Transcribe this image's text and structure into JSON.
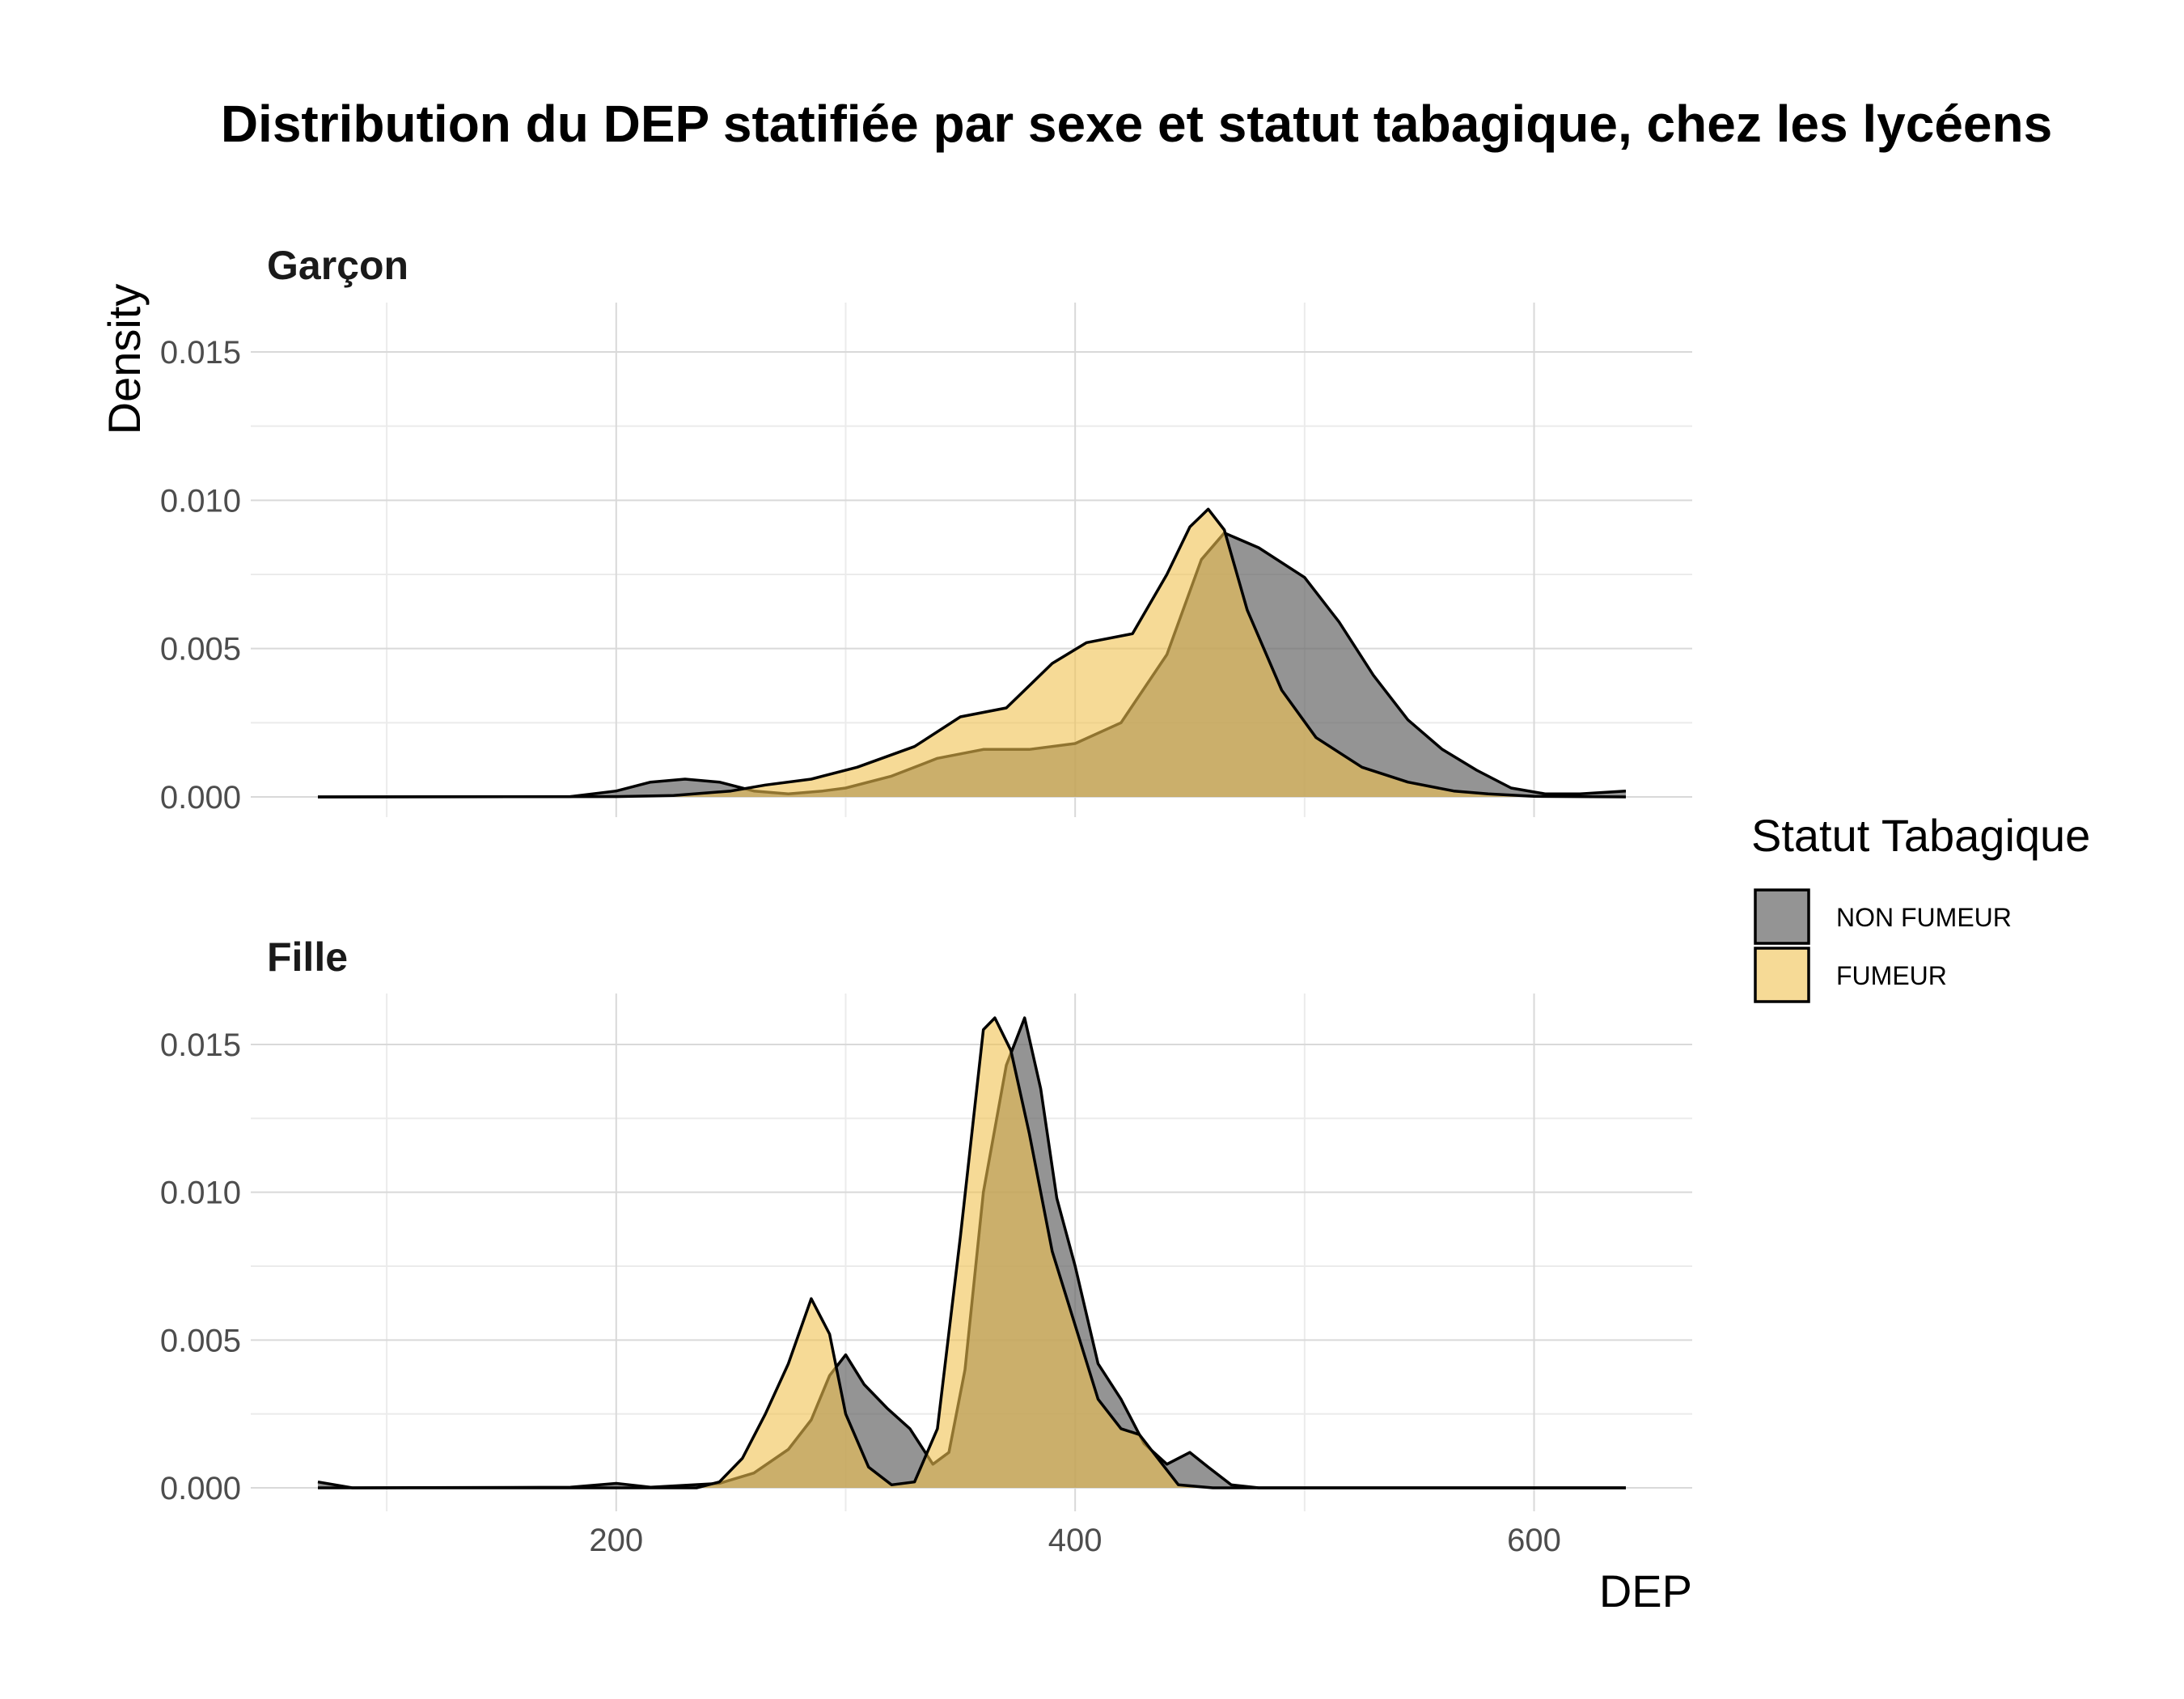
{
  "chart_data": {
    "type": "area",
    "title": "Distribution du DEP statifiée par sexe et statut tabagique, chez les lycéens",
    "xlabel": "DEP",
    "ylabel": "Density",
    "xlim": [
      70,
      640
    ],
    "ylim": [
      0,
      0.0165
    ],
    "x_ticks": [
      200,
      400,
      600
    ],
    "x_tick_labels": [
      "200",
      "400",
      "600"
    ],
    "y_ticks": [
      0,
      0.005,
      0.01,
      0.015
    ],
    "y_tick_labels": [
      "0.000",
      "0.005",
      "0.010",
      "0.015"
    ],
    "grid": true,
    "legend": {
      "title": "Statut Tabagique",
      "position": "right",
      "entries": [
        {
          "label": "NON FUMEUR",
          "color": "#666666",
          "opacity": 0.7
        },
        {
          "label": "FUMEUR",
          "color": "#F0C250",
          "opacity": 0.6
        }
      ]
    },
    "outline_color": "#000000",
    "panels": [
      {
        "label": "Garçon",
        "series": [
          {
            "name": "NON FUMEUR",
            "points": [
              [
                70,
                0
              ],
              [
                180,
                1e-05
              ],
              [
                200,
                0.0002
              ],
              [
                215,
                0.0005
              ],
              [
                230,
                0.0006
              ],
              [
                245,
                0.0005
              ],
              [
                260,
                0.0002
              ],
              [
                275,
                0.0001
              ],
              [
                290,
                0.0002
              ],
              [
                300,
                0.0003
              ],
              [
                320,
                0.0007
              ],
              [
                340,
                0.0013
              ],
              [
                360,
                0.0016
              ],
              [
                380,
                0.0016
              ],
              [
                400,
                0.0018
              ],
              [
                420,
                0.0025
              ],
              [
                440,
                0.0048
              ],
              [
                455,
                0.008
              ],
              [
                465,
                0.0089
              ],
              [
                480,
                0.0084
              ],
              [
                500,
                0.0074
              ],
              [
                515,
                0.0059
              ],
              [
                530,
                0.0041
              ],
              [
                545,
                0.0026
              ],
              [
                560,
                0.0016
              ],
              [
                575,
                0.0009
              ],
              [
                590,
                0.0003
              ],
              [
                605,
                0.0001
              ],
              [
                620,
                0.0001
              ],
              [
                640,
                0.0002
              ]
            ]
          },
          {
            "name": "FUMEUR",
            "points": [
              [
                70,
                0
              ],
              [
                200,
                1e-05
              ],
              [
                225,
                5e-05
              ],
              [
                250,
                0.0002
              ],
              [
                265,
                0.0004
              ],
              [
                285,
                0.0006
              ],
              [
                305,
                0.001
              ],
              [
                330,
                0.0017
              ],
              [
                350,
                0.0027
              ],
              [
                370,
                0.003
              ],
              [
                390,
                0.0045
              ],
              [
                405,
                0.0052
              ],
              [
                425,
                0.0055
              ],
              [
                440,
                0.0075
              ],
              [
                450,
                0.0091
              ],
              [
                458,
                0.0097
              ],
              [
                465,
                0.009
              ],
              [
                475,
                0.0063
              ],
              [
                490,
                0.0036
              ],
              [
                505,
                0.002
              ],
              [
                525,
                0.001
              ],
              [
                545,
                0.0005
              ],
              [
                565,
                0.0002
              ],
              [
                580,
                0.0001
              ],
              [
                600,
                2e-05
              ],
              [
                640,
                0
              ]
            ]
          }
        ]
      },
      {
        "label": "Fille",
        "series": [
          {
            "name": "NON FUMEUR",
            "points": [
              [
                70,
                0.0002
              ],
              [
                85,
                0
              ],
              [
                180,
                2e-05
              ],
              [
                200,
                0.00015
              ],
              [
                215,
                2e-05
              ],
              [
                245,
                0.00015
              ],
              [
                260,
                0.0005
              ],
              [
                275,
                0.0013
              ],
              [
                285,
                0.0023
              ],
              [
                293,
                0.0038
              ],
              [
                300,
                0.0045
              ],
              [
                308,
                0.0035
              ],
              [
                318,
                0.0027
              ],
              [
                328,
                0.002
              ],
              [
                338,
                0.0008
              ],
              [
                345,
                0.0012
              ],
              [
                352,
                0.004
              ],
              [
                360,
                0.01
              ],
              [
                370,
                0.0143
              ],
              [
                378,
                0.0159
              ],
              [
                385,
                0.0135
              ],
              [
                392,
                0.0098
              ],
              [
                400,
                0.0075
              ],
              [
                410,
                0.0042
              ],
              [
                420,
                0.003
              ],
              [
                430,
                0.0015
              ],
              [
                440,
                0.0008
              ],
              [
                450,
                0.0012
              ],
              [
                458,
                0.0007
              ],
              [
                468,
                0.0001
              ],
              [
                480,
                0
              ],
              [
                640,
                0
              ]
            ]
          },
          {
            "name": "FUMEUR",
            "points": [
              [
                70,
                0
              ],
              [
                235,
                0
              ],
              [
                245,
                0.0002
              ],
              [
                255,
                0.001
              ],
              [
                265,
                0.0025
              ],
              [
                275,
                0.0042
              ],
              [
                285,
                0.0064
              ],
              [
                293,
                0.0052
              ],
              [
                300,
                0.0025
              ],
              [
                310,
                0.0007
              ],
              [
                320,
                0.0001
              ],
              [
                330,
                0.0002
              ],
              [
                340,
                0.002
              ],
              [
                350,
                0.0085
              ],
              [
                360,
                0.0155
              ],
              [
                365,
                0.0159
              ],
              [
                372,
                0.0148
              ],
              [
                380,
                0.012
              ],
              [
                390,
                0.008
              ],
              [
                400,
                0.0055
              ],
              [
                410,
                0.003
              ],
              [
                420,
                0.002
              ],
              [
                428,
                0.0018
              ],
              [
                438,
                0.0008
              ],
              [
                445,
                0.0001
              ],
              [
                460,
                0
              ],
              [
                640,
                0
              ]
            ]
          }
        ]
      }
    ]
  }
}
